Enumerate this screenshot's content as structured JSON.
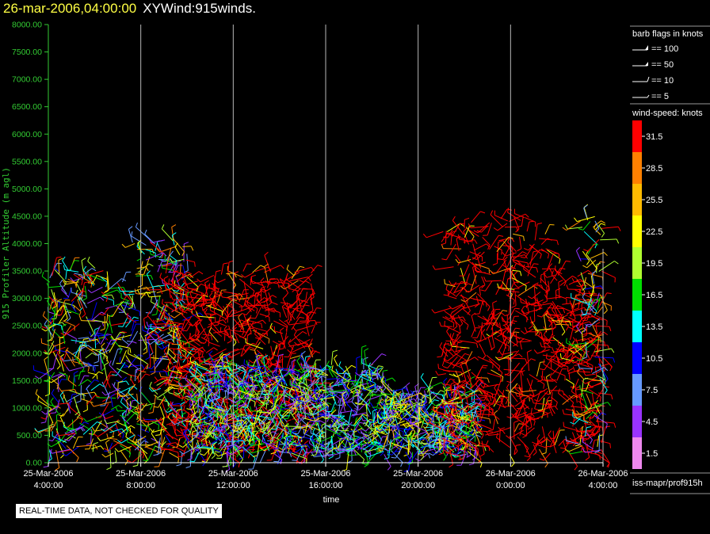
{
  "header": {
    "timestamp": "26-mar-2006,04:00:00",
    "name": "XYWind:915winds."
  },
  "footer": {
    "quality_note": "REAL-TIME DATA, NOT CHECKED FOR QUALITY",
    "source": "iss-mapr/prof915h"
  },
  "legend": {
    "barb_title": "barb flags in knots",
    "barbs": [
      "== 100",
      "== 50",
      "== 10",
      "== 5"
    ],
    "speed_title": "wind-speed: knots",
    "speed_bins": [
      {
        "label": "31.5",
        "color": "#ff0000"
      },
      {
        "label": "28.5",
        "color": "#ff8000"
      },
      {
        "label": "25.5",
        "color": "#ffbb00"
      },
      {
        "label": "22.5",
        "color": "#ffff00"
      },
      {
        "label": "19.5",
        "color": "#b0ff30"
      },
      {
        "label": "16.5",
        "color": "#00dd00"
      },
      {
        "label": "13.5",
        "color": "#00ffff"
      },
      {
        "label": "10.5",
        "color": "#0000ff"
      },
      {
        "label": "7.5",
        "color": "#6699ff"
      },
      {
        "label": "4.5",
        "color": "#9933ff"
      },
      {
        "label": "1.5",
        "color": "#ee88ee"
      }
    ]
  },
  "chart_data": {
    "type": "scatter",
    "subtype": "wind-barb time-height plot",
    "title": "",
    "xlabel": "time",
    "ylabel": "915 Profiler Altitude (m agl)",
    "x_ticks": [
      [
        "25-Mar-2006",
        "4:00:00"
      ],
      [
        "25-Mar-2006",
        "8:00:00"
      ],
      [
        "25-Mar-2006",
        "12:00:00"
      ],
      [
        "25-Mar-2006",
        "16:00:00"
      ],
      [
        "25-Mar-2006",
        "20:00:00"
      ],
      [
        "26-Mar-2006",
        "0:00:00"
      ],
      [
        "26-Mar-2006",
        "4:00:00"
      ]
    ],
    "x_range_hours": [
      0,
      24
    ],
    "y_ticks": [
      "0.00",
      "500.00",
      "1000.00",
      "1500.00",
      "2000.00",
      "2500.00",
      "3000.00",
      "3500.00",
      "4000.00",
      "4500.00",
      "5000.00",
      "5500.00",
      "6000.00",
      "6500.00",
      "7000.00",
      "7500.00",
      "8000.00"
    ],
    "ylim": [
      0,
      8000
    ],
    "grid": "vertical lines at x ticks",
    "segments": [
      {
        "t0": 0.0,
        "t1": 3.6,
        "top": 3550,
        "bin": "mixed"
      },
      {
        "t0": 3.6,
        "t1": 6.0,
        "top": 4100,
        "bin": "mixed"
      },
      {
        "t0": 5.0,
        "t1": 11.5,
        "top": 3500,
        "bin": "hi"
      },
      {
        "t0": 6.0,
        "t1": 14.5,
        "top": 1800,
        "bin": "lo"
      },
      {
        "t0": 14.5,
        "t1": 18.5,
        "top": 1350,
        "bin": "mid"
      },
      {
        "t0": 17.0,
        "t1": 19.0,
        "top": 4400,
        "bin": "hi"
      },
      {
        "t0": 19.0,
        "t1": 21.6,
        "top": 4500,
        "bin": "hi"
      },
      {
        "t0": 21.6,
        "t1": 24.0,
        "top": 3500,
        "bin": "hi"
      },
      {
        "t0": 23.0,
        "t1": 24.0,
        "top": 4500,
        "bin": "mixed"
      }
    ]
  }
}
